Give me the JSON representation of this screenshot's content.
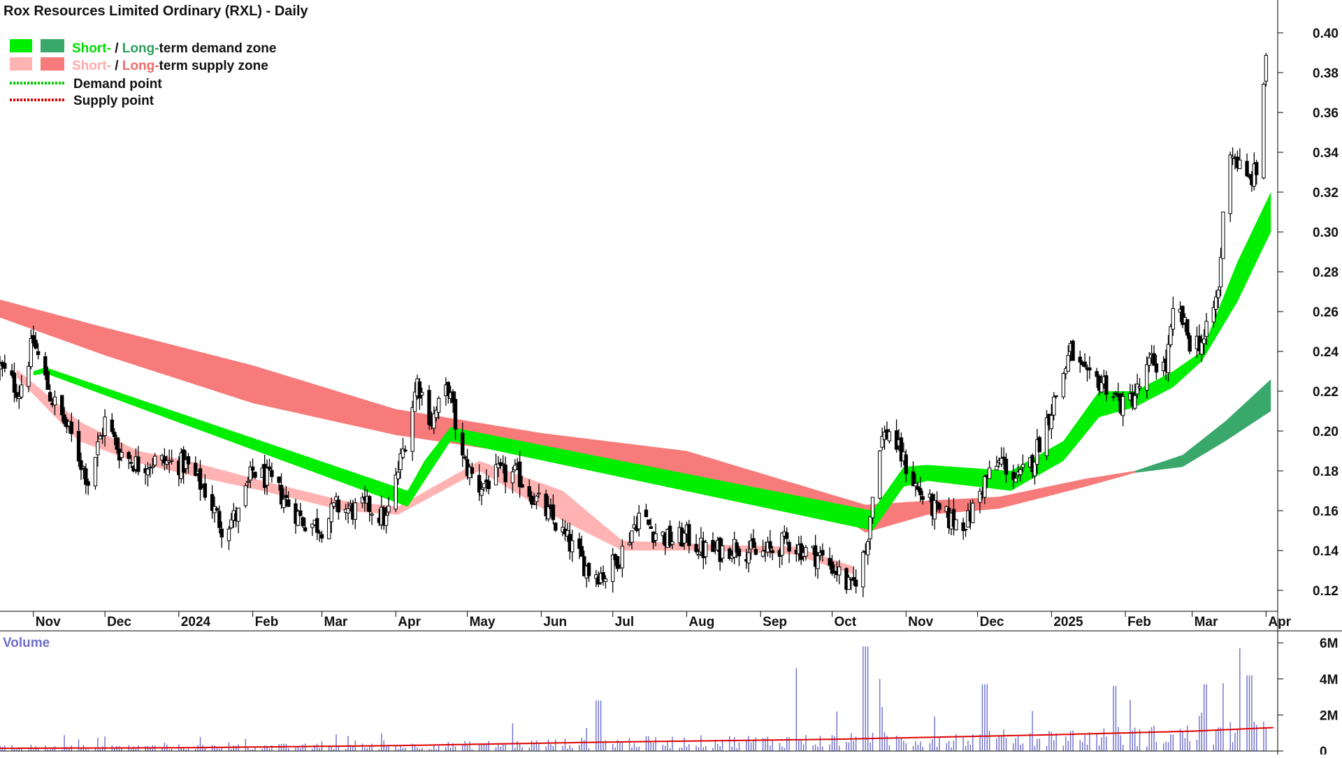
{
  "title": "Rox Resources Limited Ordinary (RXL) - Daily",
  "legend": {
    "demand_zone": {
      "short": "Short-",
      "sep": " / ",
      "long": "Long-",
      "rest": "term demand zone"
    },
    "supply_zone": {
      "short": "Short-",
      "sep": " / ",
      "long": "Long-",
      "rest": "term supply zone"
    },
    "demand_point": "Demand point",
    "supply_point": "Supply point"
  },
  "colors": {
    "short_demand": "#00ee00",
    "long_demand": "#3aa86b",
    "short_supply": "#ffb3b3",
    "long_supply": "#f77b7b",
    "overlap": "#f46a1e",
    "demand_point": "#00cc00",
    "supply_point": "#dd0000",
    "volume_bar": "#6c6ccc",
    "volume_ma": "#dd0000",
    "candle": "#000000"
  },
  "volume_label": "Volume",
  "chart_data": {
    "type": "candlestick",
    "title": "Rox Resources Limited Ordinary (RXL) - Daily",
    "xlabel": "",
    "ylabel": "",
    "price_axis": {
      "ticks": [
        "0.12",
        "0.14",
        "0.16",
        "0.18",
        "0.20",
        "0.22",
        "0.24",
        "0.26",
        "0.28",
        "0.30",
        "0.32",
        "0.34",
        "0.36",
        "0.38",
        "0.40"
      ],
      "range": [
        0.11,
        0.41
      ],
      "position": "right"
    },
    "x_axis": {
      "labels": [
        "Nov",
        "Dec",
        "2024",
        "Feb",
        "Mar",
        "Apr",
        "May",
        "Jun",
        "Jul",
        "Aug",
        "Sep",
        "Oct",
        "Nov",
        "Dec",
        "2025",
        "Feb",
        "Mar",
        "Apr"
      ],
      "range": [
        "2023-10-18",
        "2025-04-05"
      ]
    },
    "volume_axis": {
      "ticks": [
        "0",
        "2M",
        "4M",
        "6M"
      ],
      "range": [
        0,
        6200000
      ]
    },
    "price_anchors": [
      [
        "2023-10-18",
        0.232
      ],
      [
        "2023-10-26",
        0.22
      ],
      [
        "2023-11-01",
        0.245
      ],
      [
        "2023-11-08",
        0.218
      ],
      [
        "2023-11-16",
        0.2
      ],
      [
        "2023-11-24",
        0.175
      ],
      [
        "2023-12-01",
        0.205
      ],
      [
        "2023-12-07",
        0.19
      ],
      [
        "2023-12-15",
        0.183
      ],
      [
        "2023-12-22",
        0.185
      ],
      [
        "2024-01-04",
        0.183
      ],
      [
        "2024-01-12",
        0.17
      ],
      [
        "2024-01-19",
        0.152
      ],
      [
        "2024-01-26",
        0.158
      ],
      [
        "2024-02-01",
        0.18
      ],
      [
        "2024-02-08",
        0.175
      ],
      [
        "2024-02-15",
        0.165
      ],
      [
        "2024-02-22",
        0.155
      ],
      [
        "2024-03-01",
        0.152
      ],
      [
        "2024-03-07",
        0.162
      ],
      [
        "2024-03-14",
        0.16
      ],
      [
        "2024-03-21",
        0.162
      ],
      [
        "2024-03-28",
        0.155
      ],
      [
        "2024-04-04",
        0.19
      ],
      [
        "2024-04-10",
        0.225
      ],
      [
        "2024-04-16",
        0.205
      ],
      [
        "2024-04-23",
        0.222
      ],
      [
        "2024-04-29",
        0.185
      ],
      [
        "2024-05-06",
        0.172
      ],
      [
        "2024-05-14",
        0.178
      ],
      [
        "2024-05-22",
        0.178
      ],
      [
        "2024-05-30",
        0.165
      ],
      [
        "2024-06-06",
        0.155
      ],
      [
        "2024-06-13",
        0.143
      ],
      [
        "2024-06-21",
        0.13
      ],
      [
        "2024-06-28",
        0.128
      ],
      [
        "2024-07-05",
        0.14
      ],
      [
        "2024-07-12",
        0.158
      ],
      [
        "2024-07-18",
        0.15
      ],
      [
        "2024-07-25",
        0.145
      ],
      [
        "2024-08-01",
        0.147
      ],
      [
        "2024-08-08",
        0.14
      ],
      [
        "2024-08-15",
        0.14
      ],
      [
        "2024-08-22",
        0.143
      ],
      [
        "2024-08-30",
        0.138
      ],
      [
        "2024-09-06",
        0.14
      ],
      [
        "2024-09-12",
        0.145
      ],
      [
        "2024-09-19",
        0.14
      ],
      [
        "2024-09-26",
        0.137
      ],
      [
        "2024-10-03",
        0.13
      ],
      [
        "2024-10-09",
        0.12
      ],
      [
        "2024-10-15",
        0.14
      ],
      [
        "2024-10-21",
        0.195
      ],
      [
        "2024-10-25",
        0.2
      ],
      [
        "2024-10-31",
        0.185
      ],
      [
        "2024-11-06",
        0.17
      ],
      [
        "2024-11-13",
        0.16
      ],
      [
        "2024-11-20",
        0.155
      ],
      [
        "2024-11-27",
        0.155
      ],
      [
        "2024-12-04",
        0.175
      ],
      [
        "2024-12-11",
        0.185
      ],
      [
        "2024-12-18",
        0.175
      ],
      [
        "2024-12-24",
        0.185
      ],
      [
        "2025-01-02",
        0.215
      ],
      [
        "2025-01-09",
        0.24
      ],
      [
        "2025-01-16",
        0.225
      ],
      [
        "2025-01-23",
        0.225
      ],
      [
        "2025-01-31",
        0.212
      ],
      [
        "2025-02-06",
        0.22
      ],
      [
        "2025-02-12",
        0.235
      ],
      [
        "2025-02-18",
        0.232
      ],
      [
        "2025-02-22",
        0.265
      ],
      [
        "2025-02-28",
        0.245
      ],
      [
        "2025-03-06",
        0.245
      ],
      [
        "2025-03-12",
        0.27
      ],
      [
        "2025-03-16",
        0.345
      ],
      [
        "2025-03-20",
        0.335
      ],
      [
        "2025-03-24",
        0.325
      ],
      [
        "2025-03-28",
        0.33
      ],
      [
        "2025-04-01",
        0.39
      ]
    ],
    "short_demand_zone": [
      [
        "2023-11-01",
        0.228,
        0.23
      ],
      [
        "2023-11-06",
        0.229,
        0.232
      ],
      [
        "2024-04-06",
        0.162,
        0.17
      ],
      [
        "2024-04-13",
        0.175,
        0.185
      ],
      [
        "2024-04-24",
        0.195,
        0.202
      ],
      [
        "2024-10-18",
        0.15,
        0.16
      ],
      [
        "2024-10-31",
        0.172,
        0.182
      ],
      [
        "2024-11-10",
        0.175,
        0.183
      ],
      [
        "2024-12-15",
        0.17,
        0.18
      ],
      [
        "2025-01-06",
        0.185,
        0.195
      ],
      [
        "2025-01-21",
        0.207,
        0.22
      ],
      [
        "2025-02-05",
        0.212,
        0.22
      ],
      [
        "2025-02-21",
        0.222,
        0.23
      ],
      [
        "2025-03-05",
        0.235,
        0.24
      ],
      [
        "2025-03-20",
        0.265,
        0.285
      ],
      [
        "2025-04-03",
        0.3,
        0.32
      ]
    ],
    "long_demand_zone": [
      [
        "2025-02-05",
        0.179,
        0.18
      ],
      [
        "2025-02-25",
        0.182,
        0.188
      ],
      [
        "2025-03-15",
        0.195,
        0.205
      ],
      [
        "2025-04-03",
        0.21,
        0.226
      ]
    ],
    "short_supply_zone": [
      [
        "2023-10-25",
        0.227,
        0.231
      ],
      [
        "2023-11-20",
        0.195,
        0.205
      ],
      [
        "2023-12-15",
        0.184,
        0.19
      ],
      [
        "2024-01-05",
        0.178,
        0.185
      ],
      [
        "2024-02-05",
        0.17,
        0.175
      ],
      [
        "2024-03-10",
        0.16,
        0.165
      ],
      [
        "2024-04-02",
        0.158,
        0.162
      ],
      [
        "2024-05-06",
        0.18,
        0.185
      ],
      [
        "2024-06-10",
        0.155,
        0.17
      ],
      [
        "2024-07-05",
        0.14,
        0.145
      ],
      [
        "2024-08-10",
        0.14,
        0.143
      ],
      [
        "2024-09-15",
        0.138,
        0.142
      ],
      [
        "2024-10-10",
        0.128,
        0.132
      ]
    ],
    "long_supply_zone": [
      [
        "2023-10-18",
        0.257,
        0.266
      ],
      [
        "2023-12-01",
        0.238,
        0.252
      ],
      [
        "2024-02-01",
        0.214,
        0.233
      ],
      [
        "2024-04-01",
        0.198,
        0.211
      ],
      [
        "2024-06-01",
        0.187,
        0.199
      ],
      [
        "2024-08-01",
        0.178,
        0.19
      ],
      [
        "2024-10-01",
        0.16,
        0.168
      ],
      [
        "2024-10-15",
        0.149,
        0.163
      ],
      [
        "2024-11-10",
        0.158,
        0.165
      ],
      [
        "2024-12-10",
        0.161,
        0.167
      ],
      [
        "2025-01-15",
        0.172,
        0.176
      ],
      [
        "2025-02-05",
        0.179,
        0.18
      ]
    ],
    "volume_anchors_m": [
      [
        "2023-10-18",
        0.18
      ],
      [
        "2024-04-01",
        0.25
      ],
      [
        "2024-07-01",
        0.45
      ],
      [
        "2024-10-01",
        0.55
      ],
      [
        "2025-01-01",
        0.7
      ],
      [
        "2025-04-04",
        0.95
      ]
    ],
    "volume_ma_m": [
      [
        "2023-10-18",
        0.15
      ],
      [
        "2024-01-01",
        0.18
      ],
      [
        "2024-04-01",
        0.3
      ],
      [
        "2024-07-01",
        0.5
      ],
      [
        "2024-10-01",
        0.65
      ],
      [
        "2025-01-01",
        0.9
      ],
      [
        "2025-03-01",
        1.1
      ],
      [
        "2025-04-04",
        1.3
      ]
    ],
    "volume_spikes_m": [
      [
        "2024-06-25",
        2.8
      ],
      [
        "2024-09-15",
        4.6
      ],
      [
        "2024-10-15",
        5.8
      ],
      [
        "2024-10-20",
        4.0
      ],
      [
        "2024-12-04",
        3.7
      ],
      [
        "2025-01-27",
        3.6
      ],
      [
        "2025-03-07",
        3.7
      ],
      [
        "2025-03-22",
        5.7
      ],
      [
        "2025-03-25",
        4.2
      ],
      [
        "2025-04-03",
        3.6
      ]
    ]
  }
}
